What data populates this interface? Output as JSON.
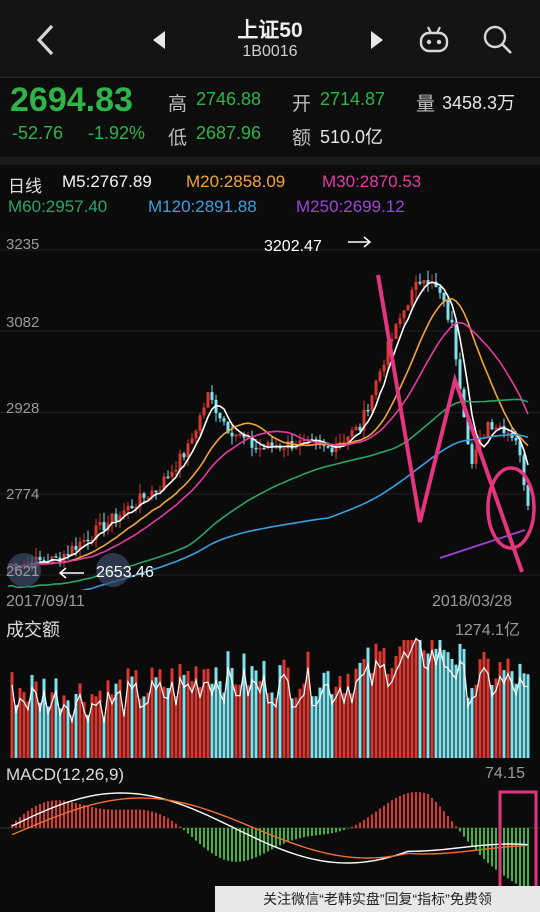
{
  "header": {
    "title": "上证50",
    "code": "1B0016",
    "back_icon": "chevron-left-icon",
    "prev_icon": "triangle-left-icon",
    "next_icon": "triangle-right-icon",
    "robot_icon": "robot-icon",
    "search_icon": "search-icon"
  },
  "quote": {
    "price": "2694.83",
    "change": "-52.76",
    "change_pct": "-1.92%",
    "high_label": "高",
    "high": "2746.88",
    "open_label": "开",
    "open": "2714.87",
    "vol_label": "量",
    "volume": "3458.3万",
    "low_label": "低",
    "low": "2687.96",
    "amt_label": "额",
    "amount": "510.0亿"
  },
  "ma": {
    "period": "日线",
    "m5": "M5:2767.89",
    "m20": "M20:2858.09",
    "m30": "M30:2870.53",
    "m60": "M60:2957.40",
    "m120": "M120:2891.88",
    "m250": "M250:2699.12"
  },
  "colors": {
    "m5": "#ffffff",
    "m20": "#f0a63a",
    "m30": "#e43b9f",
    "m60": "#2aa56a",
    "m120": "#3b9fe0",
    "m250": "#9b46d8",
    "up": "#d9372f",
    "down": "#7fe3ee",
    "annot": "#e2357e"
  },
  "chart_data": {
    "type": "candlestick",
    "y_ticks": [
      "3235",
      "3082",
      "2928",
      "2774",
      "2621"
    ],
    "ylim": [
      2621,
      3235
    ],
    "high_label": "3202.47",
    "low_label": "2653.46",
    "start_date": "2017/09/11",
    "end_date": "2018/03/28",
    "volume_title": "成交额",
    "volume_max": "1274.1亿",
    "macd_title": "MACD(12,26,9)",
    "macd_max": "74.15"
  },
  "footer": {
    "text": "关注微信“老韩实盘”回复“指标”免费领"
  }
}
